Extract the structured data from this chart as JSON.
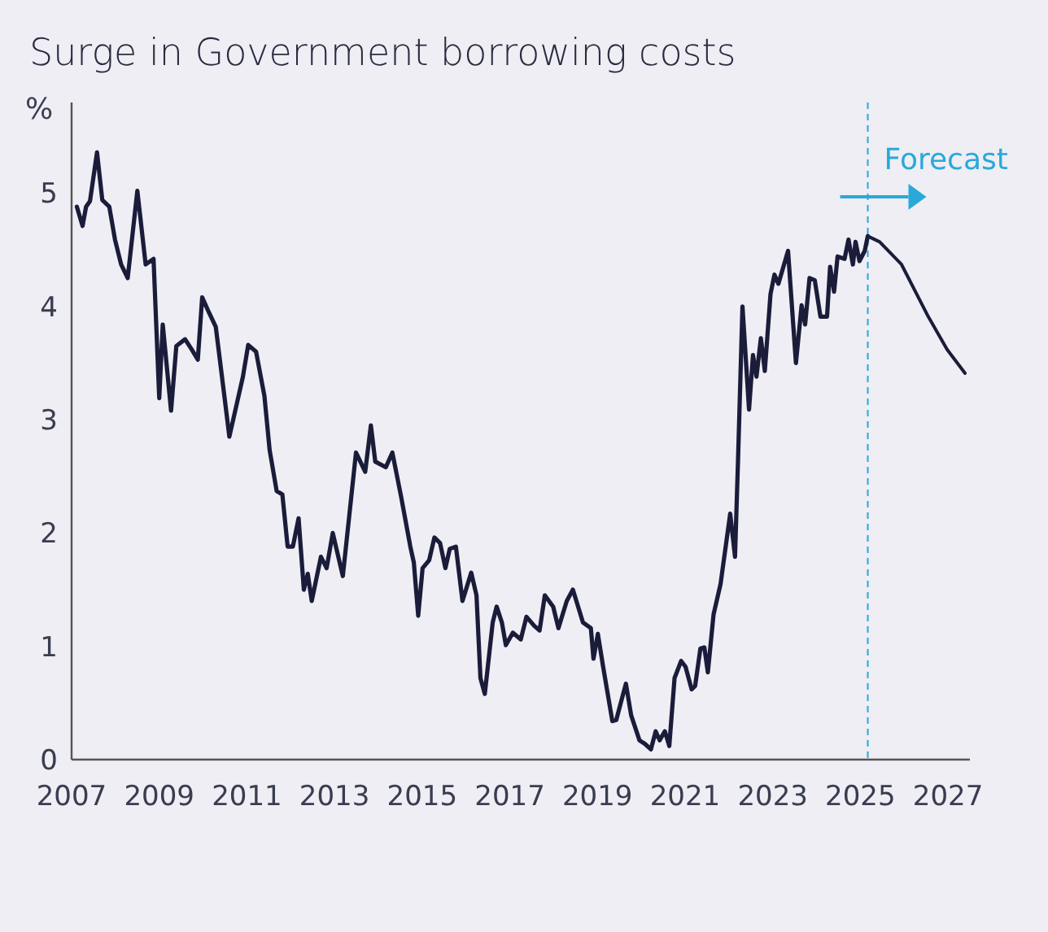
{
  "chart_data": {
    "type": "line",
    "title": "Surge in Government borrowing costs",
    "ylabel": "%",
    "xlim": [
      2007,
      2027.5
    ],
    "xticks": [
      2007,
      2009,
      2011,
      2013,
      2015,
      2017,
      2019,
      2021,
      2023,
      2025,
      2027
    ],
    "ylim": [
      0,
      5.8
    ],
    "yticks": [
      0,
      1,
      2,
      3,
      4,
      5
    ],
    "grid": false,
    "ref_lines": [
      {
        "axis": "x",
        "value": 2025.17,
        "label": "Forecast",
        "color": "#29a9d9",
        "line_style": "dashed"
      }
    ],
    "series": [
      {
        "color": "#1a1c3a",
        "x": [
          2007.12,
          2007.25,
          2007.33,
          2007.42,
          2007.58,
          2007.7,
          2007.86,
          2007.99,
          2008.13,
          2008.28,
          2008.5,
          2008.69,
          2008.87,
          2009.0,
          2009.08,
          2009.27,
          2009.39,
          2009.59,
          2009.74,
          2009.88,
          2009.98,
          2010.13,
          2010.29,
          2010.47,
          2010.6,
          2010.91,
          2011.03,
          2011.21,
          2011.4,
          2011.52,
          2011.68,
          2011.81,
          2011.93,
          2012.05,
          2012.18,
          2012.3,
          2012.39,
          2012.48,
          2012.69,
          2012.82,
          2012.96,
          2013.19,
          2013.49,
          2013.7,
          2013.83,
          2013.93,
          2014.17,
          2014.32,
          2014.52,
          2014.73,
          2014.81,
          2014.91,
          2015.01,
          2015.16,
          2015.28,
          2015.41,
          2015.53,
          2015.63,
          2015.77,
          2015.92,
          2016.12,
          2016.24,
          2016.33,
          2016.43,
          2016.61,
          2016.7,
          2016.82,
          2016.91,
          2017.07,
          2017.25,
          2017.38,
          2017.56,
          2017.68,
          2017.8,
          2017.99,
          2018.11,
          2018.3,
          2018.44,
          2018.67,
          2018.85,
          2018.91,
          2019.01,
          2019.13,
          2019.34,
          2019.43,
          2019.65,
          2019.77,
          2019.96,
          2020.08,
          2020.22,
          2020.33,
          2020.42,
          2020.54,
          2020.64,
          2020.76,
          2020.91,
          2021.01,
          2021.15,
          2021.23,
          2021.35,
          2021.44,
          2021.52,
          2021.65,
          2021.81,
          2022.03,
          2022.14,
          2022.21,
          2022.31,
          2022.46,
          2022.55,
          2022.63,
          2022.73,
          2022.82,
          2022.95,
          2023.04,
          2023.13,
          2023.35,
          2023.53,
          2023.66,
          2023.74,
          2023.84,
          2023.96,
          2024.09,
          2024.24,
          2024.31,
          2024.4,
          2024.48,
          2024.64,
          2024.73,
          2024.83,
          2024.89,
          2024.98,
          2025.1,
          2025.17
        ],
        "values": [
          4.88,
          4.71,
          4.88,
          4.93,
          5.36,
          4.94,
          4.88,
          4.59,
          4.37,
          4.25,
          5.02,
          4.37,
          4.42,
          3.19,
          3.84,
          3.08,
          3.65,
          3.71,
          3.62,
          3.53,
          4.08,
          3.95,
          3.82,
          3.26,
          2.85,
          3.38,
          3.66,
          3.6,
          3.21,
          2.73,
          2.37,
          2.34,
          1.88,
          1.88,
          2.13,
          1.5,
          1.64,
          1.4,
          1.79,
          1.69,
          2.0,
          1.62,
          2.71,
          2.54,
          2.95,
          2.63,
          2.58,
          2.71,
          2.32,
          1.88,
          1.74,
          1.27,
          1.69,
          1.76,
          1.96,
          1.91,
          1.69,
          1.86,
          1.88,
          1.4,
          1.65,
          1.45,
          0.72,
          0.58,
          1.21,
          1.35,
          1.21,
          1.01,
          1.12,
          1.06,
          1.26,
          1.18,
          1.14,
          1.45,
          1.35,
          1.16,
          1.4,
          1.5,
          1.21,
          1.16,
          0.89,
          1.11,
          0.82,
          0.34,
          0.35,
          0.67,
          0.39,
          0.17,
          0.14,
          0.09,
          0.25,
          0.17,
          0.25,
          0.12,
          0.72,
          0.87,
          0.82,
          0.62,
          0.65,
          0.98,
          0.99,
          0.77,
          1.28,
          1.55,
          2.17,
          1.79,
          2.66,
          4.0,
          3.09,
          3.57,
          3.38,
          3.72,
          3.43,
          4.11,
          4.28,
          4.2,
          4.49,
          3.5,
          4.01,
          3.84,
          4.25,
          4.23,
          3.91,
          3.91,
          4.35,
          4.13,
          4.44,
          4.42,
          4.59,
          4.37,
          4.57,
          4.4,
          4.49,
          4.62
        ]
      },
      {
        "color": "#1a1c3a",
        "x": [
          2025.17,
          2025.44,
          2025.94,
          2026.55,
          2026.98,
          2027.39
        ],
        "values": [
          4.62,
          4.57,
          4.37,
          3.91,
          3.62,
          3.41
        ]
      }
    ]
  }
}
